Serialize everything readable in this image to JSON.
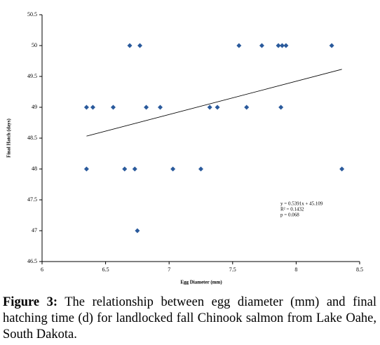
{
  "chart_data": {
    "type": "scatter",
    "x_label": "Egg Diameter (mm)",
    "y_label": "Final Hatch (days)",
    "color": "#2a5a9c",
    "x": [
      6.35,
      6.4,
      6.56,
      6.82,
      6.93,
      7.32,
      7.38,
      7.61,
      7.88,
      6.69,
      6.77,
      7.55,
      7.73,
      7.86,
      7.89,
      7.92,
      8.28,
      6.35,
      6.65,
      6.73,
      7.03,
      7.25,
      8.36,
      6.75
    ],
    "values": [
      49,
      49,
      49,
      49,
      49,
      49,
      49,
      49,
      49,
      50,
      50,
      50,
      50,
      50,
      50,
      50,
      50,
      48,
      48,
      48,
      48,
      48,
      48,
      47
    ],
    "xlim": [
      6,
      8.5
    ],
    "xticks": [
      6,
      6.5,
      7,
      7.5,
      8,
      8.5
    ],
    "ylim": [
      46.5,
      50.5
    ],
    "yticks": [
      46.5,
      47,
      47.5,
      48,
      48.5,
      49,
      49.5,
      50,
      50.5
    ],
    "trendline": {
      "slope": 0.5391,
      "intercept": 45.109,
      "x": [
        6.35,
        8.36
      ]
    },
    "annotations": [
      "y = 0.5391x + 45.109",
      "R² = 0.1432",
      "p = 0.068"
    ]
  },
  "caption": {
    "label": "Figure 3:",
    "text": " The relationship between egg diameter (mm) and final hatching time (d) for landlocked fall Chinook salmon from Lake Oahe, South Dakota."
  }
}
